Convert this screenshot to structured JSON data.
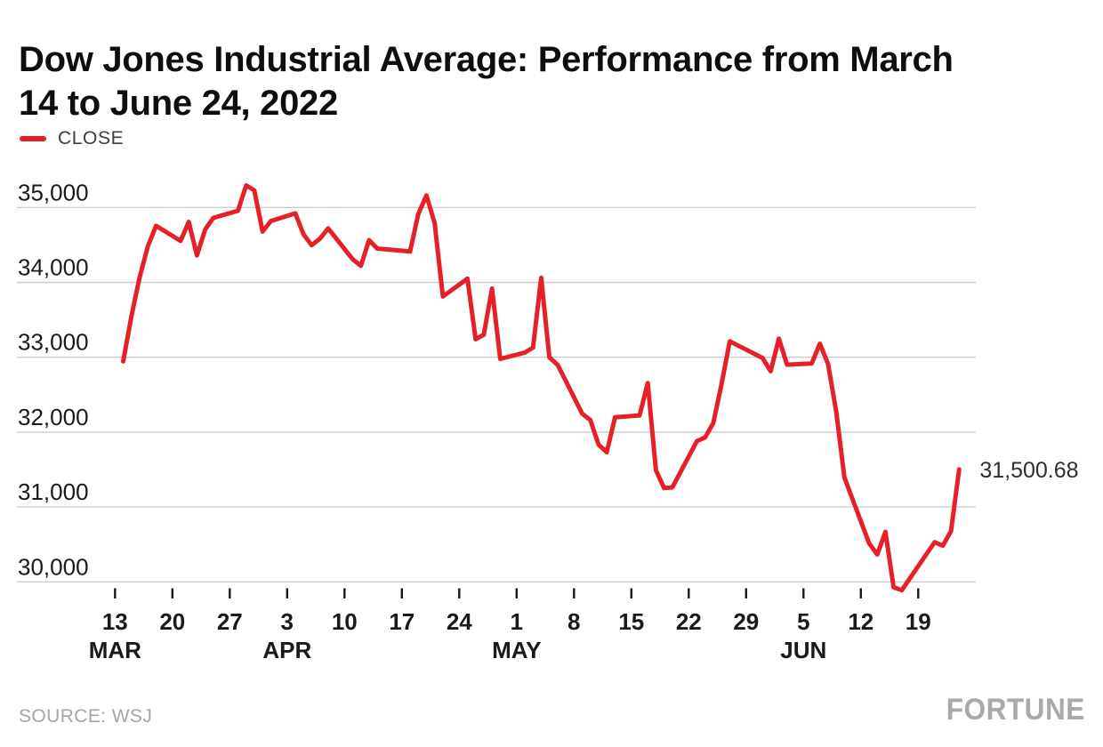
{
  "header": {
    "title": "Dow Jones Industrial Average: Performance from March 14 to June 24, 2022",
    "title_lines": [
      "Dow Jones Industrial Average: Performance from March",
      "14 to June 24, 2022"
    ]
  },
  "legend": {
    "label": "CLOSE",
    "color": "#e52127"
  },
  "footer": {
    "source": "SOURCE: WSJ",
    "brand": "FORTUNE"
  },
  "colors": {
    "line_red": "#e52127",
    "gridline": "#cccccc",
    "axis_text": "#1a1a1a",
    "tick_mark": "#1a1a1a",
    "end_label_text": "#2e2e2e",
    "muted_text": "#a5a5a5",
    "title_text": "#0e0e0e",
    "background": "#ffffff"
  },
  "chart_data": {
    "type": "line",
    "title": "Dow Jones Industrial Average: Performance from March 14 to June 24, 2022",
    "xlabel": "",
    "ylabel": "",
    "grid": "horizontal",
    "legend_position": "top-left",
    "end_label": "31,500.68",
    "y_axis": {
      "range": [
        29600,
        35400
      ],
      "ticks": [
        {
          "value": 35000,
          "label": "35,000"
        },
        {
          "value": 34000,
          "label": "34,000"
        },
        {
          "value": 33000,
          "label": "33,000"
        },
        {
          "value": 32000,
          "label": "32,000"
        },
        {
          "value": 31000,
          "label": "31,000"
        },
        {
          "value": 30000,
          "label": "30,000"
        }
      ]
    },
    "x_axis": {
      "tick_labels": [
        "13",
        "20",
        "27",
        "3",
        "10",
        "17",
        "24",
        "1",
        "8",
        "15",
        "22",
        "29",
        "5",
        "12",
        "19"
      ],
      "tick_dates": [
        "2022-03-13",
        "2022-03-20",
        "2022-03-27",
        "2022-04-03",
        "2022-04-10",
        "2022-04-17",
        "2022-04-24",
        "2022-05-01",
        "2022-05-08",
        "2022-05-15",
        "2022-05-22",
        "2022-05-29",
        "2022-06-05",
        "2022-06-12",
        "2022-06-19"
      ],
      "month_labels": [
        {
          "label": "MAR",
          "tick_index": 0
        },
        {
          "label": "APR",
          "tick_index": 3
        },
        {
          "label": "MAY",
          "tick_index": 7
        },
        {
          "label": "JUN",
          "tick_index": 12
        }
      ]
    },
    "series": [
      {
        "name": "CLOSE",
        "color": "#e52127",
        "dates": [
          "2022-03-14",
          "2022-03-15",
          "2022-03-16",
          "2022-03-17",
          "2022-03-18",
          "2022-03-21",
          "2022-03-22",
          "2022-03-23",
          "2022-03-24",
          "2022-03-25",
          "2022-03-28",
          "2022-03-29",
          "2022-03-30",
          "2022-03-31",
          "2022-04-01",
          "2022-04-04",
          "2022-04-05",
          "2022-04-06",
          "2022-04-07",
          "2022-04-08",
          "2022-04-11",
          "2022-04-12",
          "2022-04-13",
          "2022-04-14",
          "2022-04-18",
          "2022-04-19",
          "2022-04-20",
          "2022-04-21",
          "2022-04-22",
          "2022-04-25",
          "2022-04-26",
          "2022-04-27",
          "2022-04-28",
          "2022-04-29",
          "2022-05-02",
          "2022-05-03",
          "2022-05-04",
          "2022-05-05",
          "2022-05-06",
          "2022-05-09",
          "2022-05-10",
          "2022-05-11",
          "2022-05-12",
          "2022-05-13",
          "2022-05-16",
          "2022-05-17",
          "2022-05-18",
          "2022-05-19",
          "2022-05-20",
          "2022-05-23",
          "2022-05-24",
          "2022-05-25",
          "2022-05-26",
          "2022-05-27",
          "2022-05-31",
          "2022-06-01",
          "2022-06-02",
          "2022-06-03",
          "2022-06-06",
          "2022-06-07",
          "2022-06-08",
          "2022-06-09",
          "2022-06-10",
          "2022-06-13",
          "2022-06-14",
          "2022-06-15",
          "2022-06-16",
          "2022-06-17",
          "2022-06-21",
          "2022-06-22",
          "2022-06-23",
          "2022-06-24"
        ],
        "values": [
          32945.24,
          33544.34,
          34063.1,
          34480.76,
          34754.93,
          34552.99,
          34807.46,
          34358.5,
          34707.94,
          34861.24,
          34955.89,
          35294.19,
          35228.81,
          34678.35,
          34818.27,
          34921.88,
          34641.18,
          34496.51,
          34583.57,
          34721.12,
          34308.08,
          34220.36,
          34564.59,
          34451.23,
          34411.69,
          34911.2,
          35160.79,
          34792.76,
          33811.4,
          34049.46,
          33240.18,
          33301.93,
          33916.39,
          32977.21,
          33061.5,
          33128.79,
          34061.06,
          32997.97,
          32899.37,
          32245.7,
          32160.74,
          31834.11,
          31730.3,
          32196.66,
          32223.42,
          32654.59,
          31490.07,
          31253.13,
          31261.9,
          31880.24,
          31928.62,
          32120.28,
          32637.19,
          33212.96,
          32990.12,
          32813.23,
          33248.28,
          32899.7,
          32915.78,
          33180.14,
          32910.9,
          32272.79,
          31392.79,
          30516.74,
          30364.83,
          30668.53,
          29927.07,
          29888.78,
          30530.25,
          30483.13,
          30677.36,
          31500.68
        ]
      }
    ]
  }
}
